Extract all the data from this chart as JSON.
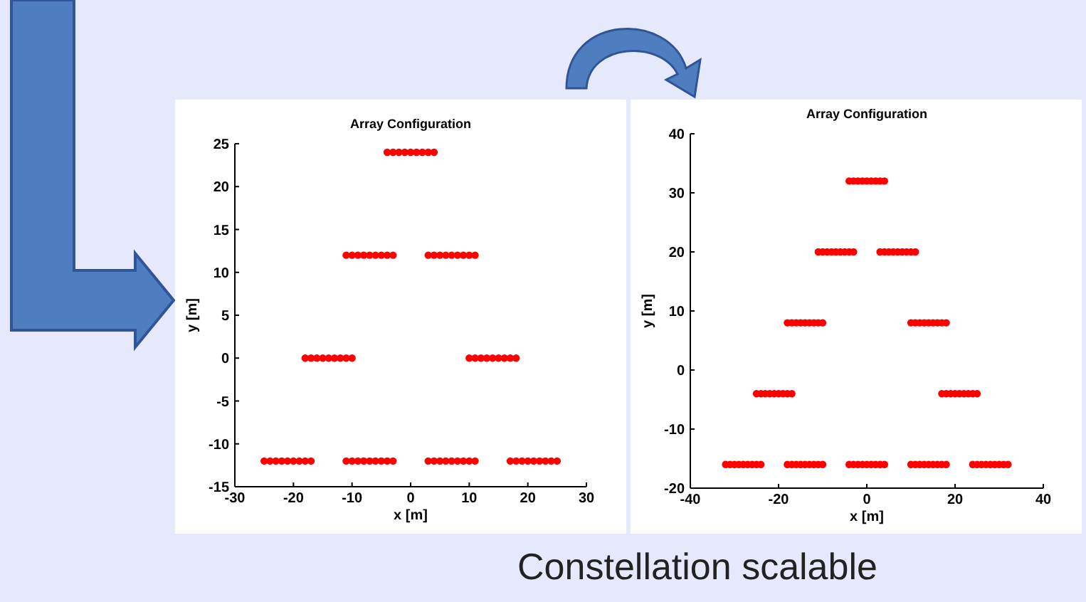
{
  "chart_data": [
    {
      "type": "scatter",
      "title": "Array Configuration",
      "xlabel": "x [m]",
      "ylabel": "y [m]",
      "xlim": [
        -30,
        30
      ],
      "ylim": [
        -15,
        25
      ],
      "xticks": [
        -30,
        -20,
        -10,
        0,
        10,
        20,
        30
      ],
      "yticks": [
        -15,
        -10,
        -5,
        0,
        5,
        10,
        15,
        20,
        25
      ],
      "grid": false,
      "marker": "circle",
      "series": [
        {
          "color": "#ff0000",
          "x": [
            -4,
            -3,
            -2,
            -1,
            0,
            1,
            2,
            3,
            4,
            -11,
            -10,
            -9,
            -8,
            -7,
            -6,
            -5,
            -4,
            -3,
            3,
            4,
            5,
            6,
            7,
            8,
            9,
            10,
            11,
            -18,
            -17,
            -16,
            -15,
            -14,
            -13,
            -12,
            -11,
            -10,
            10,
            11,
            12,
            13,
            14,
            15,
            16,
            17,
            18,
            -25,
            -24,
            -23,
            -22,
            -21,
            -20,
            -19,
            -18,
            -17,
            -11,
            -10,
            -9,
            -8,
            -7,
            -6,
            -5,
            -4,
            -3,
            3,
            4,
            5,
            6,
            7,
            8,
            9,
            10,
            11,
            17,
            18,
            19,
            20,
            21,
            22,
            23,
            24,
            25
          ],
          "values": [
            24,
            24,
            24,
            24,
            24,
            24,
            24,
            24,
            24,
            12,
            12,
            12,
            12,
            12,
            12,
            12,
            12,
            12,
            12,
            12,
            12,
            12,
            12,
            12,
            12,
            12,
            12,
            0,
            0,
            0,
            0,
            0,
            0,
            0,
            0,
            0,
            0,
            0,
            0,
            0,
            0,
            0,
            0,
            0,
            0,
            -12,
            -12,
            -12,
            -12,
            -12,
            -12,
            -12,
            -12,
            -12,
            -12,
            -12,
            -12,
            -12,
            -12,
            -12,
            -12,
            -12,
            -12,
            -12,
            -12,
            -12,
            -12,
            -12,
            -12,
            -12,
            -12,
            -12,
            -12,
            -12,
            -12,
            -12,
            -12,
            -12,
            -12,
            -12,
            -12
          ]
        }
      ]
    },
    {
      "type": "scatter",
      "title": "Array Configuration",
      "xlabel": "x [m]",
      "ylabel": "y [m]",
      "xlim": [
        -40,
        40
      ],
      "ylim": [
        -20,
        40
      ],
      "xticks": [
        -40,
        -20,
        0,
        20,
        40
      ],
      "yticks": [
        -20,
        -10,
        0,
        10,
        20,
        30,
        40
      ],
      "grid": false,
      "marker": "circle",
      "annotations": [
        "Constellation scalable"
      ],
      "series": [
        {
          "color": "#ff0000",
          "x": [
            -4,
            -3,
            -2,
            -1,
            0,
            1,
            2,
            3,
            4,
            -11,
            -10,
            -9,
            -8,
            -7,
            -6,
            -5,
            -4,
            -3,
            3,
            4,
            5,
            6,
            7,
            8,
            9,
            10,
            11,
            -18,
            -17,
            -16,
            -15,
            -14,
            -13,
            -12,
            -11,
            -10,
            10,
            11,
            12,
            13,
            14,
            15,
            16,
            17,
            18,
            -25,
            -24,
            -23,
            -22,
            -21,
            -20,
            -19,
            -18,
            -17,
            17,
            18,
            19,
            20,
            21,
            22,
            23,
            24,
            25,
            -32,
            -31,
            -30,
            -29,
            -28,
            -27,
            -26,
            -25,
            -24,
            -18,
            -17,
            -16,
            -15,
            -14,
            -13,
            -12,
            -11,
            -10,
            -4,
            -3,
            -2,
            -1,
            0,
            1,
            2,
            3,
            4,
            10,
            11,
            12,
            13,
            14,
            15,
            16,
            17,
            18,
            24,
            25,
            26,
            27,
            28,
            29,
            30,
            31,
            32
          ],
          "values": [
            32,
            32,
            32,
            32,
            32,
            32,
            32,
            32,
            32,
            20,
            20,
            20,
            20,
            20,
            20,
            20,
            20,
            20,
            20,
            20,
            20,
            20,
            20,
            20,
            20,
            20,
            20,
            8,
            8,
            8,
            8,
            8,
            8,
            8,
            8,
            8,
            8,
            8,
            8,
            8,
            8,
            8,
            8,
            8,
            8,
            -4,
            -4,
            -4,
            -4,
            -4,
            -4,
            -4,
            -4,
            -4,
            -4,
            -4,
            -4,
            -4,
            -4,
            -4,
            -4,
            -4,
            -4,
            -16,
            -16,
            -16,
            -16,
            -16,
            -16,
            -16,
            -16,
            -16,
            -16,
            -16,
            -16,
            -16,
            -16,
            -16,
            -16,
            -16,
            -16,
            -16,
            -16,
            -16,
            -16,
            -16,
            -16,
            -16,
            -16,
            -16,
            -16,
            -16,
            -16,
            -16,
            -16,
            -16,
            -16,
            -16,
            -16,
            -16,
            -16,
            -16,
            -16,
            -16,
            -16,
            -16,
            -16,
            -16
          ]
        }
      ]
    }
  ]
}
